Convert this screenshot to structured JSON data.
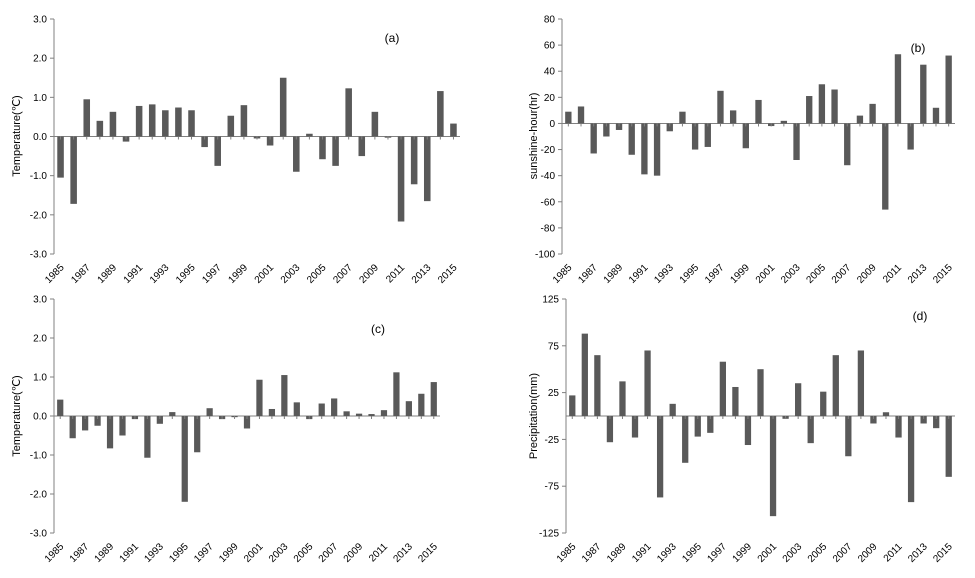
{
  "chart_data": [
    {
      "type": "bar",
      "panel_label": "(a)",
      "ylabel": "Temperature(℃)",
      "ylim": [
        -3.0,
        3.0
      ],
      "yticks": [
        "3.0",
        "2.0",
        "1.0",
        "0.0",
        "-1.0",
        "-2.0",
        "-3.0"
      ],
      "categories": [
        "1985",
        "1986",
        "1987",
        "1988",
        "1989",
        "1990",
        "1991",
        "1992",
        "1993",
        "1994",
        "1995",
        "1996",
        "1997",
        "1998",
        "1999",
        "2000",
        "2001",
        "2002",
        "2003",
        "2004",
        "2005",
        "2006",
        "2007",
        "2008",
        "2009",
        "2010",
        "2011",
        "2012",
        "2013",
        "2014",
        "2015"
      ],
      "xtick_labels": [
        "1985",
        "1987",
        "1989",
        "1991",
        "1993",
        "1995",
        "1997",
        "1999",
        "2001",
        "2003",
        "2005",
        "2007",
        "2009",
        "2011",
        "2013",
        "2015"
      ],
      "values": [
        -1.05,
        -1.72,
        0.95,
        0.4,
        0.63,
        -0.13,
        0.78,
        0.82,
        0.67,
        0.74,
        0.67,
        -0.27,
        -0.75,
        0.53,
        0.8,
        -0.05,
        -0.23,
        1.5,
        -0.9,
        0.07,
        -0.58,
        -0.75,
        1.23,
        -0.5,
        0.63,
        -0.03,
        -2.17,
        -1.22,
        -1.65,
        1.16,
        0.33
      ]
    },
    {
      "type": "bar",
      "panel_label": "(b)",
      "ylabel": "sunshine-hour(hr)",
      "ylim": [
        -100,
        80
      ],
      "yticks": [
        "80",
        "60",
        "40",
        "20",
        "0",
        "-20",
        "-40",
        "-60",
        "-80",
        "-100"
      ],
      "categories": [
        "1985",
        "1986",
        "1987",
        "1988",
        "1989",
        "1990",
        "1991",
        "1992",
        "1993",
        "1994",
        "1995",
        "1996",
        "1997",
        "1998",
        "1999",
        "2000",
        "2001",
        "2002",
        "2003",
        "2004",
        "2005",
        "2006",
        "2007",
        "2008",
        "2009",
        "2010",
        "2011",
        "2012",
        "2013",
        "2014",
        "2015"
      ],
      "xtick_labels": [
        "1985",
        "1987",
        "1989",
        "1991",
        "1993",
        "1995",
        "1997",
        "1999",
        "2001",
        "2003",
        "2005",
        "2007",
        "2009",
        "2011",
        "2013",
        "2015"
      ],
      "values": [
        9,
        13,
        -23,
        -10,
        -5,
        -24,
        -39,
        -40,
        -6,
        9,
        -20,
        -18,
        25,
        10,
        -19,
        18,
        -2,
        2,
        -28,
        21,
        30,
        26,
        -32,
        6,
        15,
        -66,
        53,
        -20,
        45,
        12,
        52
      ]
    },
    {
      "type": "bar",
      "panel_label": "(c)",
      "ylabel": "Temperature(℃)",
      "ylim": [
        -3.0,
        3.0
      ],
      "yticks": [
        "3.0",
        "2.0",
        "1.0",
        "0.0",
        "-1.0",
        "-2.0",
        "-3.0"
      ],
      "categories": [
        "1985",
        "1986",
        "1987",
        "1988",
        "1989",
        "1990",
        "1991",
        "1992",
        "1993",
        "1994",
        "1995",
        "1996",
        "1997",
        "1998",
        "1999",
        "2000",
        "2001",
        "2002",
        "2003",
        "2004",
        "2005",
        "2006",
        "2007",
        "2008",
        "2009",
        "2010",
        "2011",
        "2012",
        "2013",
        "2014",
        "2015"
      ],
      "xtick_labels": [
        "1985",
        "1987",
        "1989",
        "1991",
        "1993",
        "1995",
        "1997",
        "1999",
        "2001",
        "2003",
        "2005",
        "2007",
        "2009",
        "2011",
        "2013",
        "2015"
      ],
      "values": [
        0.42,
        -0.57,
        -0.37,
        -0.25,
        -0.83,
        -0.5,
        -0.08,
        -1.07,
        -0.2,
        0.1,
        -2.2,
        -0.93,
        0.2,
        -0.08,
        -0.03,
        -0.32,
        0.93,
        0.18,
        1.05,
        0.35,
        -0.08,
        0.32,
        0.45,
        0.12,
        0.06,
        0.05,
        0.15,
        1.12,
        0.38,
        0.57,
        0.87
      ]
    },
    {
      "type": "bar",
      "panel_label": "(d)",
      "ylabel": "Precipitation(mm)",
      "ylim": [
        -125,
        125
      ],
      "yticks": [
        "125",
        "75",
        "25",
        "-25",
        "-75",
        "-125"
      ],
      "categories": [
        "1985",
        "1986",
        "1987",
        "1988",
        "1989",
        "1990",
        "1991",
        "1992",
        "1993",
        "1994",
        "1995",
        "1996",
        "1997",
        "1998",
        "1999",
        "2000",
        "2001",
        "2002",
        "2003",
        "2004",
        "2005",
        "2006",
        "2007",
        "2008",
        "2009",
        "2010",
        "2011",
        "2012",
        "2013",
        "2014",
        "2015"
      ],
      "xtick_labels": [
        "1985",
        "1987",
        "1989",
        "1991",
        "1993",
        "1995",
        "1997",
        "1999",
        "2001",
        "2003",
        "2005",
        "2007",
        "2009",
        "2011",
        "2013",
        "2015"
      ],
      "values": [
        22,
        88,
        65,
        -28,
        37,
        -23,
        70,
        -87,
        13,
        -50,
        -22,
        -18,
        58,
        31,
        -31,
        50,
        -107,
        -3,
        35,
        -29,
        26,
        65,
        -43,
        70,
        -8,
        4,
        -23,
        -92,
        -8,
        -13,
        -65
      ]
    }
  ]
}
